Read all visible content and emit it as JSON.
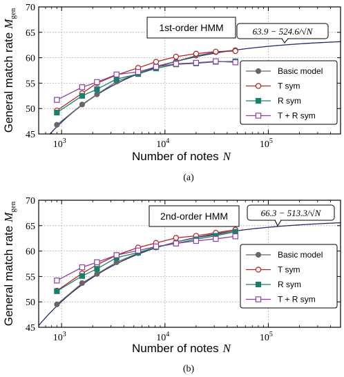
{
  "chart_data": [
    {
      "type": "line",
      "model_label": "1st-order HMM",
      "fit_label": "63.9 − 524.6/√N",
      "fit": {
        "a": 63.9,
        "b": 524.6
      },
      "caption": "(a)",
      "xlabel": "Number of notes",
      "xlabel_symbol": "N",
      "ylabel": "General match rate",
      "ylabel_symbol": "M",
      "ylabel_sub": "gen",
      "xscale": "log",
      "xlim": [
        600,
        500000
      ],
      "ylim": [
        45,
        70
      ],
      "yticks": [
        "45",
        "50",
        "55",
        "60",
        "65",
        "70"
      ],
      "xticks": [
        {
          "base": "10",
          "exp": "3",
          "value": 1000
        },
        {
          "base": "10",
          "exp": "4",
          "value": 10000
        },
        {
          "base": "10",
          "exp": "5",
          "value": 100000
        }
      ],
      "grid": true,
      "legend_position": "lower-right",
      "x": [
        900,
        1580,
        2200,
        3400,
        5500,
        8200,
        12800,
        20000,
        31000,
        48000
      ],
      "series": [
        {
          "name": "Basic model",
          "color": "#666666",
          "marker": "circle-filled",
          "values": [
            46.8,
            50.8,
            52.8,
            55.3,
            56.9,
            58.3,
            59.3,
            60.4,
            61.1,
            61.5
          ]
        },
        {
          "name": "T sym",
          "color": "#b22222",
          "marker": "circle-open",
          "values": [
            49.6,
            53.0,
            55.0,
            56.6,
            58.0,
            59.2,
            60.2,
            60.8,
            61.2,
            61.3
          ]
        },
        {
          "name": "R sym",
          "color": "#1a7f6e",
          "marker": "square-filled",
          "values": [
            49.2,
            52.5,
            53.8,
            55.8,
            56.8,
            57.9,
            58.7,
            58.9,
            59.2,
            59.3
          ]
        },
        {
          "name": "T + R sym",
          "color": "#8a3fa0",
          "marker": "square-open",
          "values": [
            51.7,
            54.2,
            55.2,
            56.7,
            57.2,
            58.2,
            58.8,
            59.0,
            59.3,
            59.1
          ]
        }
      ]
    },
    {
      "type": "line",
      "model_label": "2nd-order HMM",
      "fit_label": "66.3 − 513.3/√N",
      "fit": {
        "a": 66.3,
        "b": 513.3
      },
      "caption": "(b)",
      "xlabel": "Number of notes",
      "xlabel_symbol": "N",
      "ylabel": "General match rate",
      "ylabel_symbol": "M",
      "ylabel_sub": "gen",
      "xscale": "log",
      "xlim": [
        600,
        500000
      ],
      "ylim": [
        45,
        70
      ],
      "yticks": [
        "45",
        "50",
        "55",
        "60",
        "65",
        "70"
      ],
      "xticks": [
        {
          "base": "10",
          "exp": "3",
          "value": 1000
        },
        {
          "base": "10",
          "exp": "4",
          "value": 10000
        },
        {
          "base": "10",
          "exp": "5",
          "value": 100000
        }
      ],
      "grid": true,
      "legend_position": "lower-right",
      "x": [
        900,
        1580,
        2200,
        3400,
        5500,
        8200,
        12800,
        20000,
        31000,
        48000
      ],
      "series": [
        {
          "name": "Basic model",
          "color": "#666666",
          "marker": "circle-filled",
          "values": [
            49.5,
            53.7,
            55.5,
            57.8,
            59.6,
            60.7,
            61.8,
            62.6,
            63.2,
            64.0
          ]
        },
        {
          "name": "T sym",
          "color": "#b22222",
          "marker": "circle-open",
          "values": [
            52.2,
            55.6,
            57.3,
            59.2,
            60.7,
            61.6,
            62.6,
            63.0,
            63.6,
            64.2
          ]
        },
        {
          "name": "R sym",
          "color": "#1a7f6e",
          "marker": "square-filled",
          "values": [
            52.1,
            55.1,
            56.5,
            58.7,
            59.7,
            60.8,
            61.5,
            62.3,
            63.0,
            63.8
          ]
        },
        {
          "name": "T + R sym",
          "color": "#8a3fa0",
          "marker": "square-open",
          "values": [
            54.2,
            56.8,
            57.8,
            59.2,
            60.1,
            60.9,
            61.5,
            62.0,
            62.4,
            62.9
          ]
        }
      ]
    }
  ]
}
